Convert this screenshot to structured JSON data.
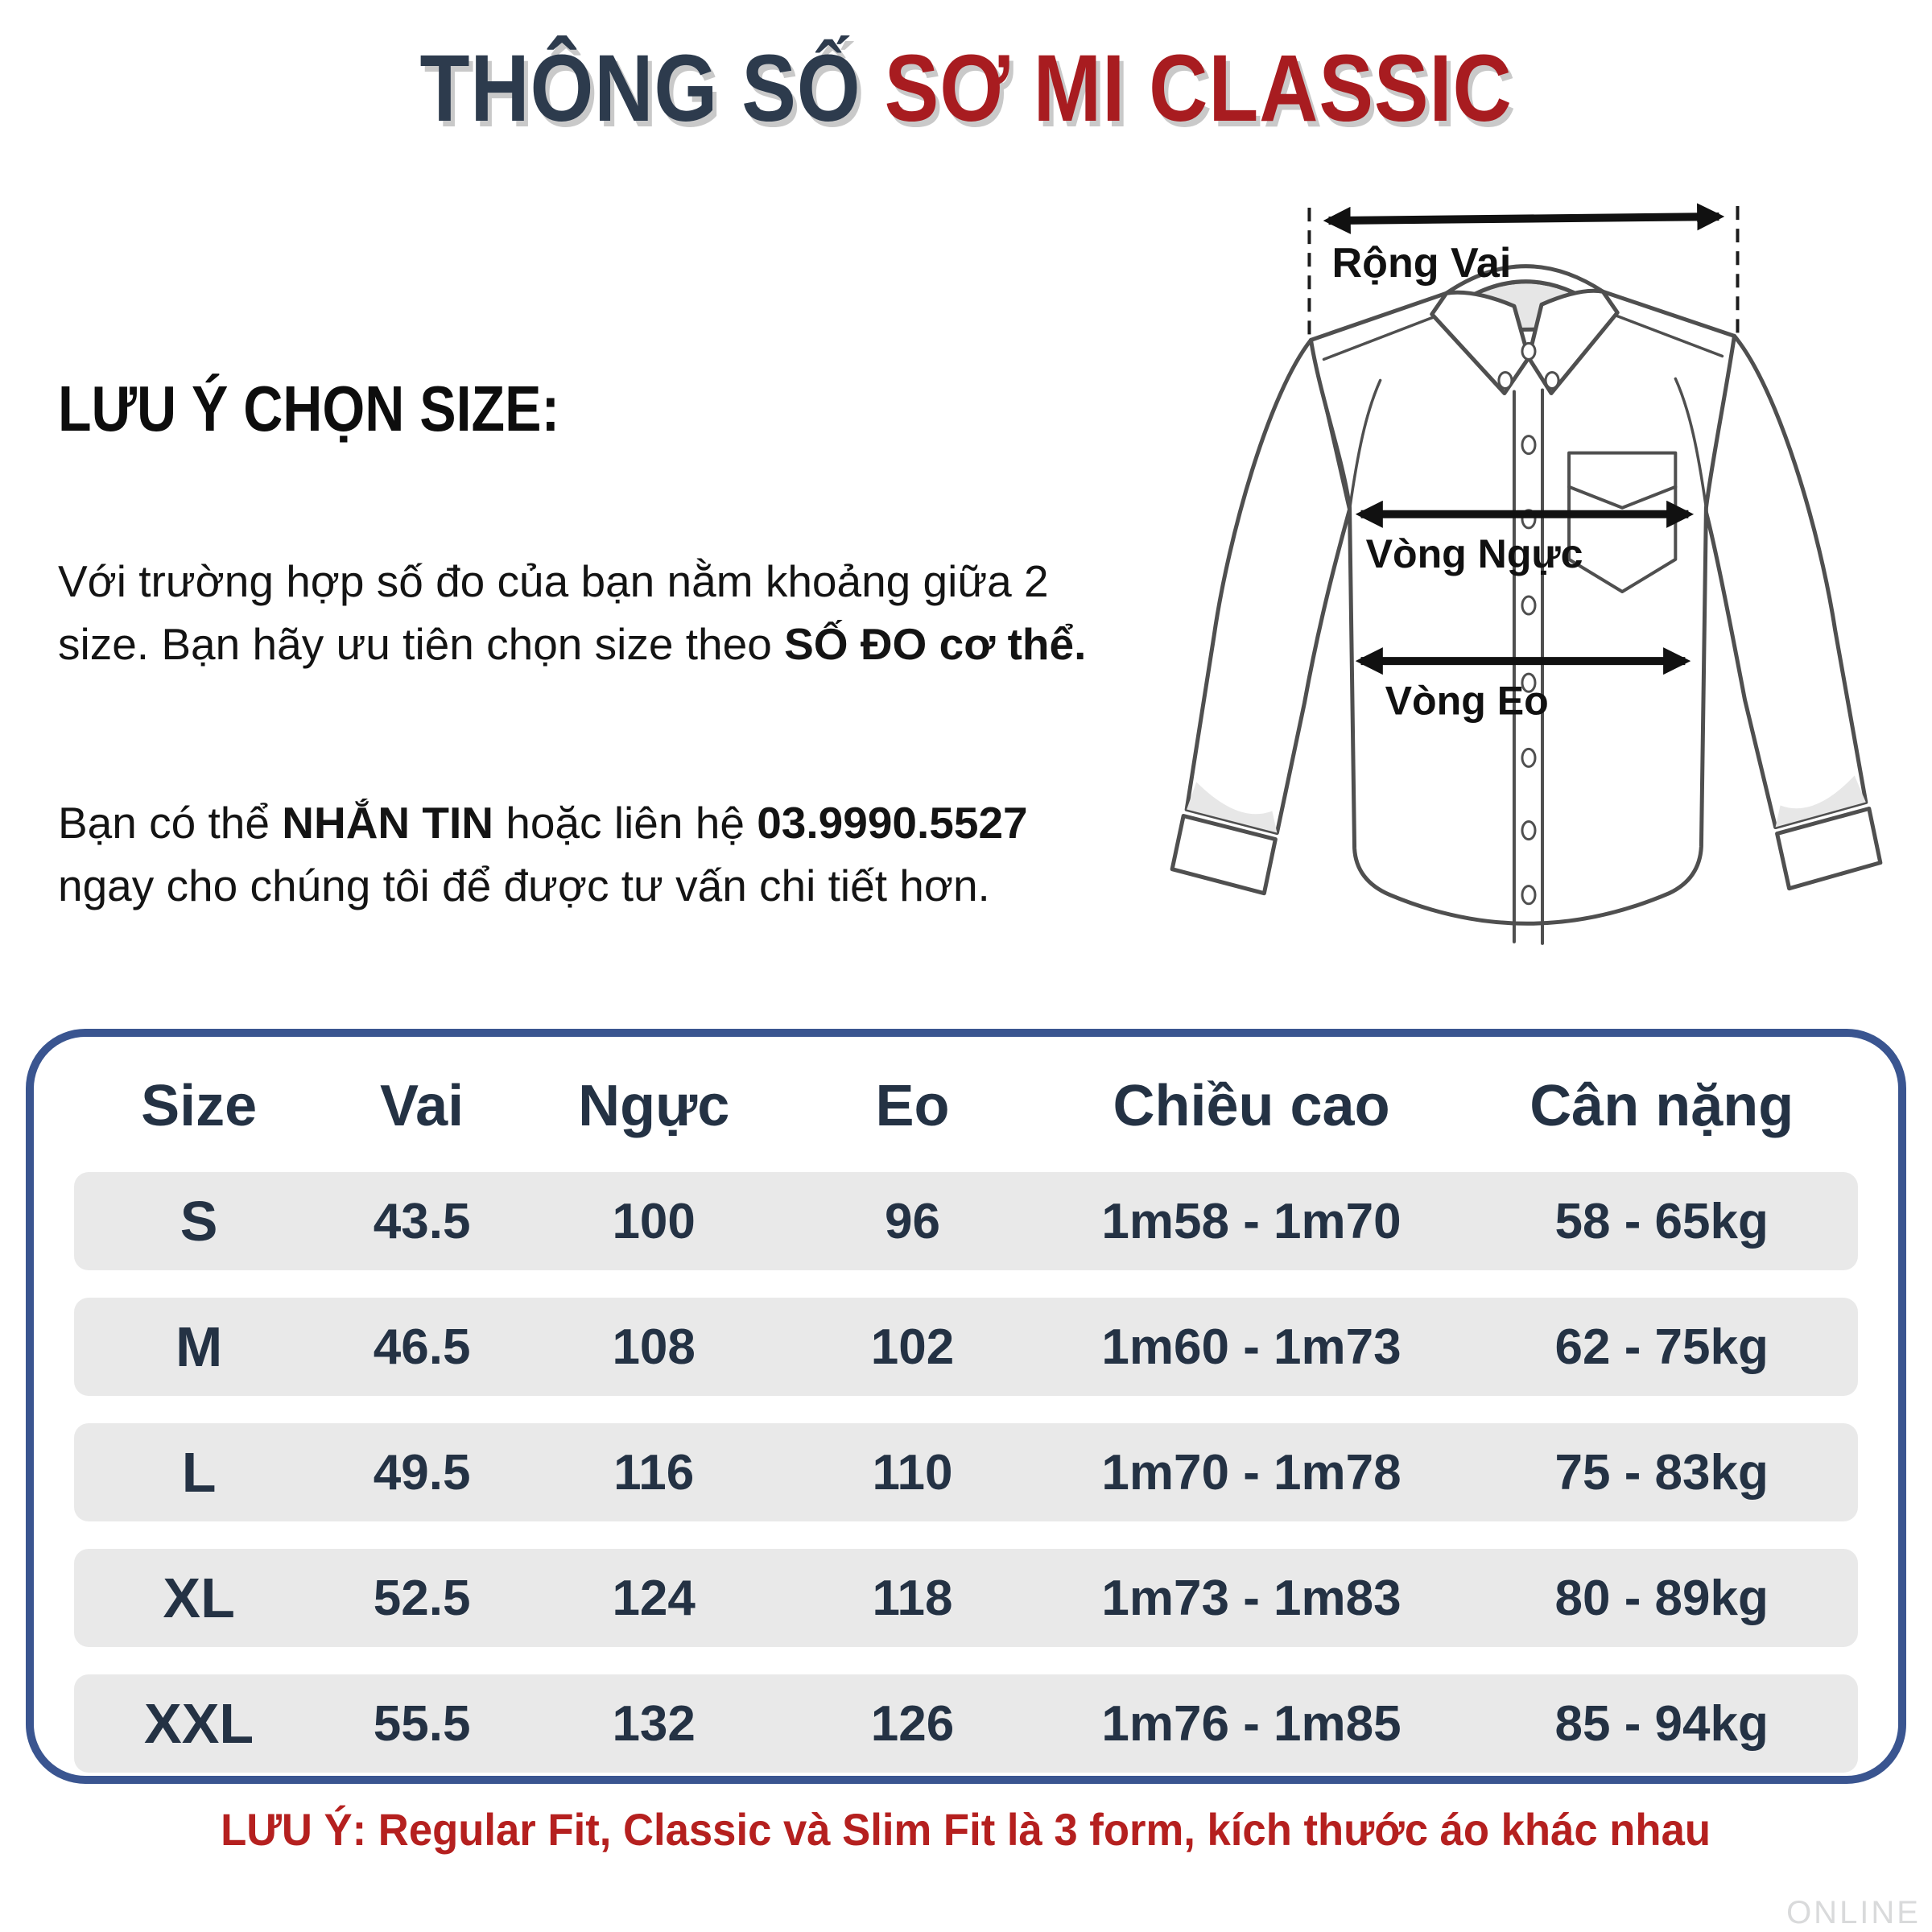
{
  "title": {
    "part1": "THÔNG SỐ ",
    "part2": "SƠ MI CLASSIC"
  },
  "sizing_note": {
    "heading": "LƯU Ý CHỌN SIZE:",
    "p1_line1": "Với trường hợp số đo của bạn nằm khoảng giữa 2",
    "p1_line2_pre": "size. Bạn hãy ưu tiên chọn size theo ",
    "p1_line2_bold": "SỐ ĐO cơ thể.",
    "p2_line1_pre": "Bạn có thể ",
    "p2_line1_bold1": "NHẮN TIN",
    "p2_line1_mid": " hoặc liên hệ ",
    "p2_line1_bold2": "03.9990.5527",
    "p2_line2": "ngay cho chúng tôi để được tư vấn chi tiết hơn."
  },
  "diagram": {
    "shoulder_label": "Rộng Vai",
    "chest_label": "Vòng Ngực",
    "waist_label": "Vòng Eo"
  },
  "size_table": {
    "columns": [
      "Size",
      "Vai",
      "Ngực",
      "Eo",
      "Chiều cao",
      "Cân nặng"
    ],
    "rows": [
      [
        "S",
        "43.5",
        "100",
        "96",
        "1m58 - 1m70",
        "58 - 65kg"
      ],
      [
        "M",
        "46.5",
        "108",
        "102",
        "1m60 - 1m73",
        "62 - 75kg"
      ],
      [
        "L",
        "49.5",
        "116",
        "110",
        "1m70 - 1m78",
        "75 - 83kg"
      ],
      [
        "XL",
        "52.5",
        "124",
        "118",
        "1m73 - 1m83",
        "80 - 89kg"
      ],
      [
        "XXL",
        "55.5",
        "132",
        "126",
        "1m76 - 1m85",
        "85 - 94kg"
      ]
    ]
  },
  "footer": {
    "note": "LƯU Ý: Regular Fit, Classic và Slim Fit là 3 form, kích thước áo khác nhau",
    "watermark": "ONLINE"
  },
  "colors": {
    "title_navy": "#2d3b4d",
    "title_red": "#a81c20",
    "table_border_blue": "#3a5590",
    "table_text_navy": "#243244",
    "row_background_gray": "#e9e9e9",
    "footer_note_red": "#b5201f",
    "watermark_gray": "#d9dadb"
  }
}
